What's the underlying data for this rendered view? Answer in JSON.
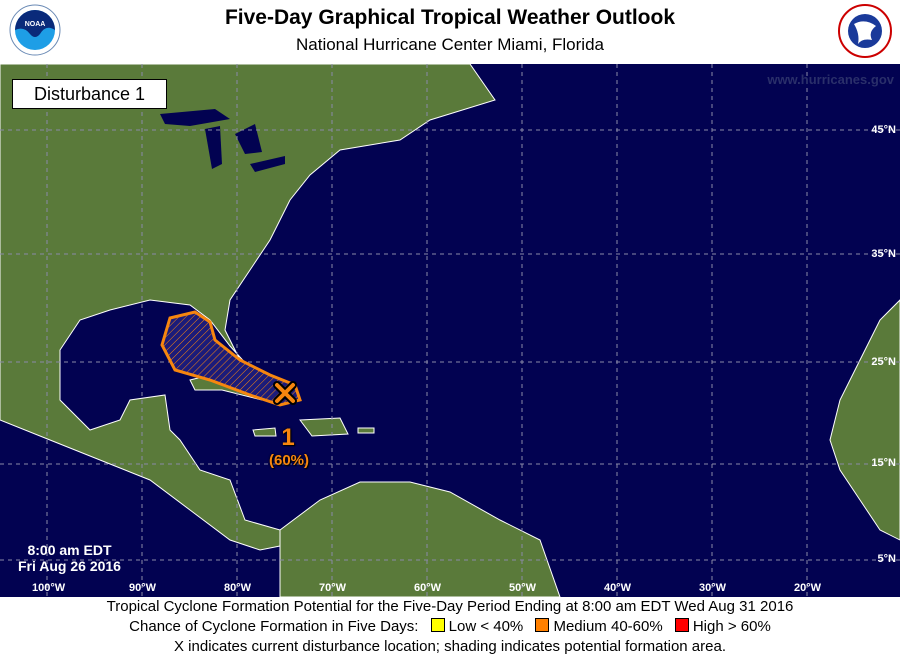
{
  "header": {
    "title": "Five-Day Graphical Tropical Weather Outlook",
    "subtitle": "National Hurricane Center  Miami, Florida",
    "left_logo": "NOAA",
    "right_logo": "NATIONAL WEATHER SERVICE"
  },
  "map": {
    "disturbance_box": "Disturbance 1",
    "watermark": "www.hurricanes.gov",
    "lat_labels": [
      "45°N",
      "35°N",
      "25°N",
      "15°N",
      "5°N"
    ],
    "lon_labels": [
      "100°W",
      "90°W",
      "80°W",
      "70°W",
      "60°W",
      "50°W",
      "40°W",
      "30°W",
      "20°W"
    ],
    "time_line1": "8:00 am EDT",
    "time_line2": "Fri Aug 26 2016",
    "disturbances": [
      {
        "number": "1",
        "chance": "(60%)",
        "category": "Medium",
        "color": "#f7860f",
        "marker": "x-icon"
      }
    ]
  },
  "footer": {
    "line1": "Tropical Cyclone Formation Potential for the Five-Day Period Ending at 8:00 am EDT Wed Aug 31 2016",
    "legend_label": "Chance of Cyclone Formation in Five Days:",
    "legend": [
      {
        "label": "Low < 40%",
        "color": "#ffff00"
      },
      {
        "label": "Medium 40-60%",
        "color": "#ff8000"
      },
      {
        "label": "High > 60%",
        "color": "#ff0000"
      }
    ],
    "line3": "X indicates current disturbance location; shading indicates potential formation area."
  },
  "colors": {
    "ocean": "#020251",
    "land": "#5a7a3a",
    "medium": "#f7860f"
  }
}
